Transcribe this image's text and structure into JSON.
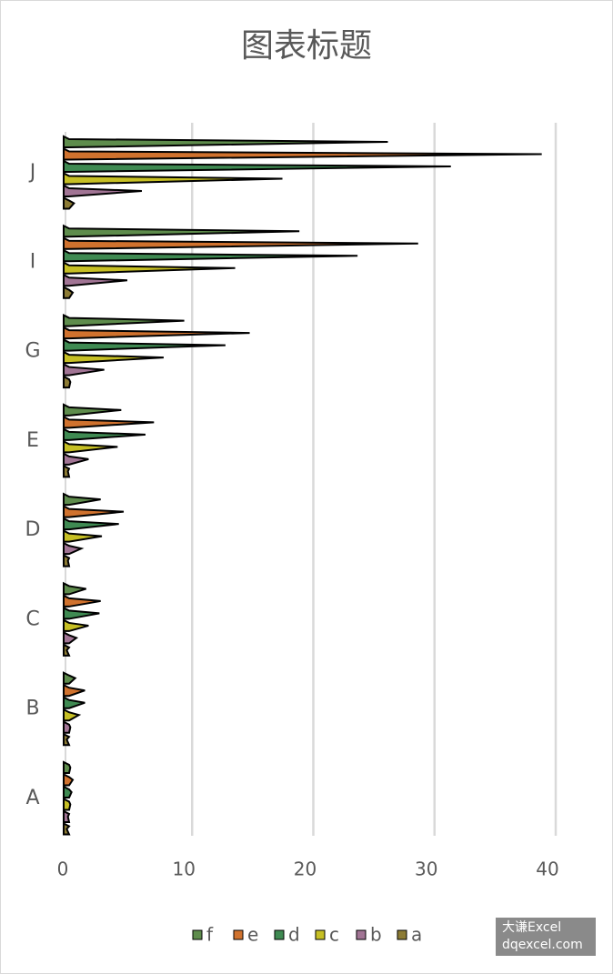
{
  "chart_data": {
    "type": "spike-bar",
    "title": "图表标题",
    "categories": [
      "A",
      "B",
      "C",
      "D",
      "E",
      "G",
      "I",
      "J"
    ],
    "series": [
      {
        "name": "f",
        "color": "#5e8c4c",
        "values": [
          0.4,
          0.8,
          1.7,
          2.9,
          4.6,
          9.8,
          19.3,
          26.6
        ]
      },
      {
        "name": "e",
        "color": "#d0722e",
        "values": [
          0.6,
          1.6,
          2.9,
          4.8,
          7.3,
          15.2,
          29.1,
          39.3
        ]
      },
      {
        "name": "d",
        "color": "#3f8a52",
        "values": [
          0.5,
          1.6,
          2.8,
          4.4,
          6.6,
          13.2,
          24.1,
          31.8
        ]
      },
      {
        "name": "c",
        "color": "#c6bf24",
        "values": [
          0.4,
          1.1,
          1.9,
          3.0,
          4.3,
          8.1,
          14.0,
          17.9
        ]
      },
      {
        "name": "b",
        "color": "#a17494",
        "values": [
          0.2,
          0.4,
          0.9,
          1.3,
          1.9,
          3.2,
          5.1,
          6.3
        ]
      },
      {
        "name": "a",
        "color": "#8c7b34",
        "values": [
          0.1,
          0.1,
          0.1,
          0.2,
          0.2,
          0.4,
          0.6,
          0.7
        ]
      }
    ],
    "xlim": [
      0,
      40
    ],
    "xticks": [
      0,
      10,
      20,
      30,
      40
    ],
    "grid": true,
    "watermark": [
      "大谦Excel",
      "dqexcel.com"
    ]
  }
}
